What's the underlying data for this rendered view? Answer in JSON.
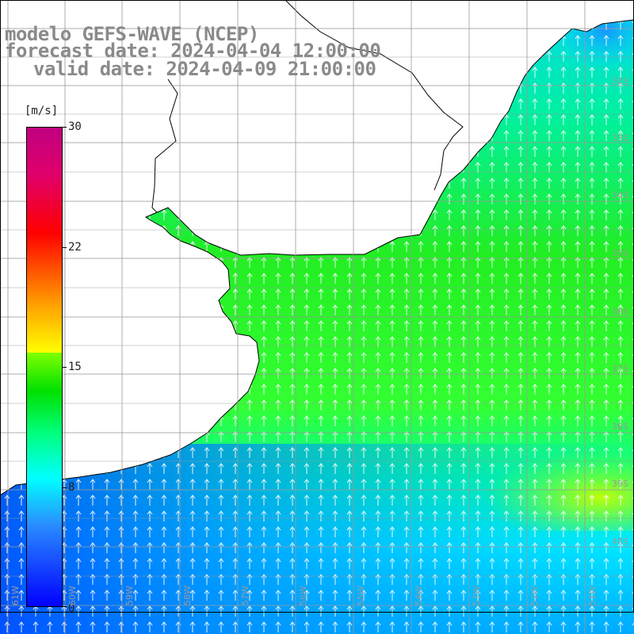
{
  "title": {
    "line1": "modelo GEFS-WAVE (NCEP)",
    "line2": "forecast date: 2024-04-04 12:00:00",
    "line3": "valid date: 2024-04-09 21:00:00"
  },
  "colorbar": {
    "unit": "[m/s]",
    "min": 0,
    "max": 30,
    "ticks": [
      {
        "label": "30",
        "value": 30
      },
      {
        "label": "22",
        "value": 22
      },
      {
        "label": "15",
        "value": 15
      },
      {
        "label": "8",
        "value": 8
      },
      {
        "label": "0",
        "value": 0
      }
    ],
    "colors": {
      "low": "#0000ff",
      "mid": "#00ff00",
      "high": "#c00080"
    }
  },
  "map": {
    "lat_labels": [
      "32S",
      "33S",
      "34S",
      "35S",
      "36S",
      "37S",
      "38S",
      "39S",
      "40S"
    ],
    "lon_labels": [
      "61W",
      "60W",
      "59W",
      "58W",
      "57W",
      "56W",
      "55W",
      "54W",
      "53W",
      "52W",
      "51W"
    ],
    "wind_direction": "northward",
    "land_color": "#ffffff",
    "coast_color": "#000000",
    "grid_color": "#9a9a9a"
  }
}
